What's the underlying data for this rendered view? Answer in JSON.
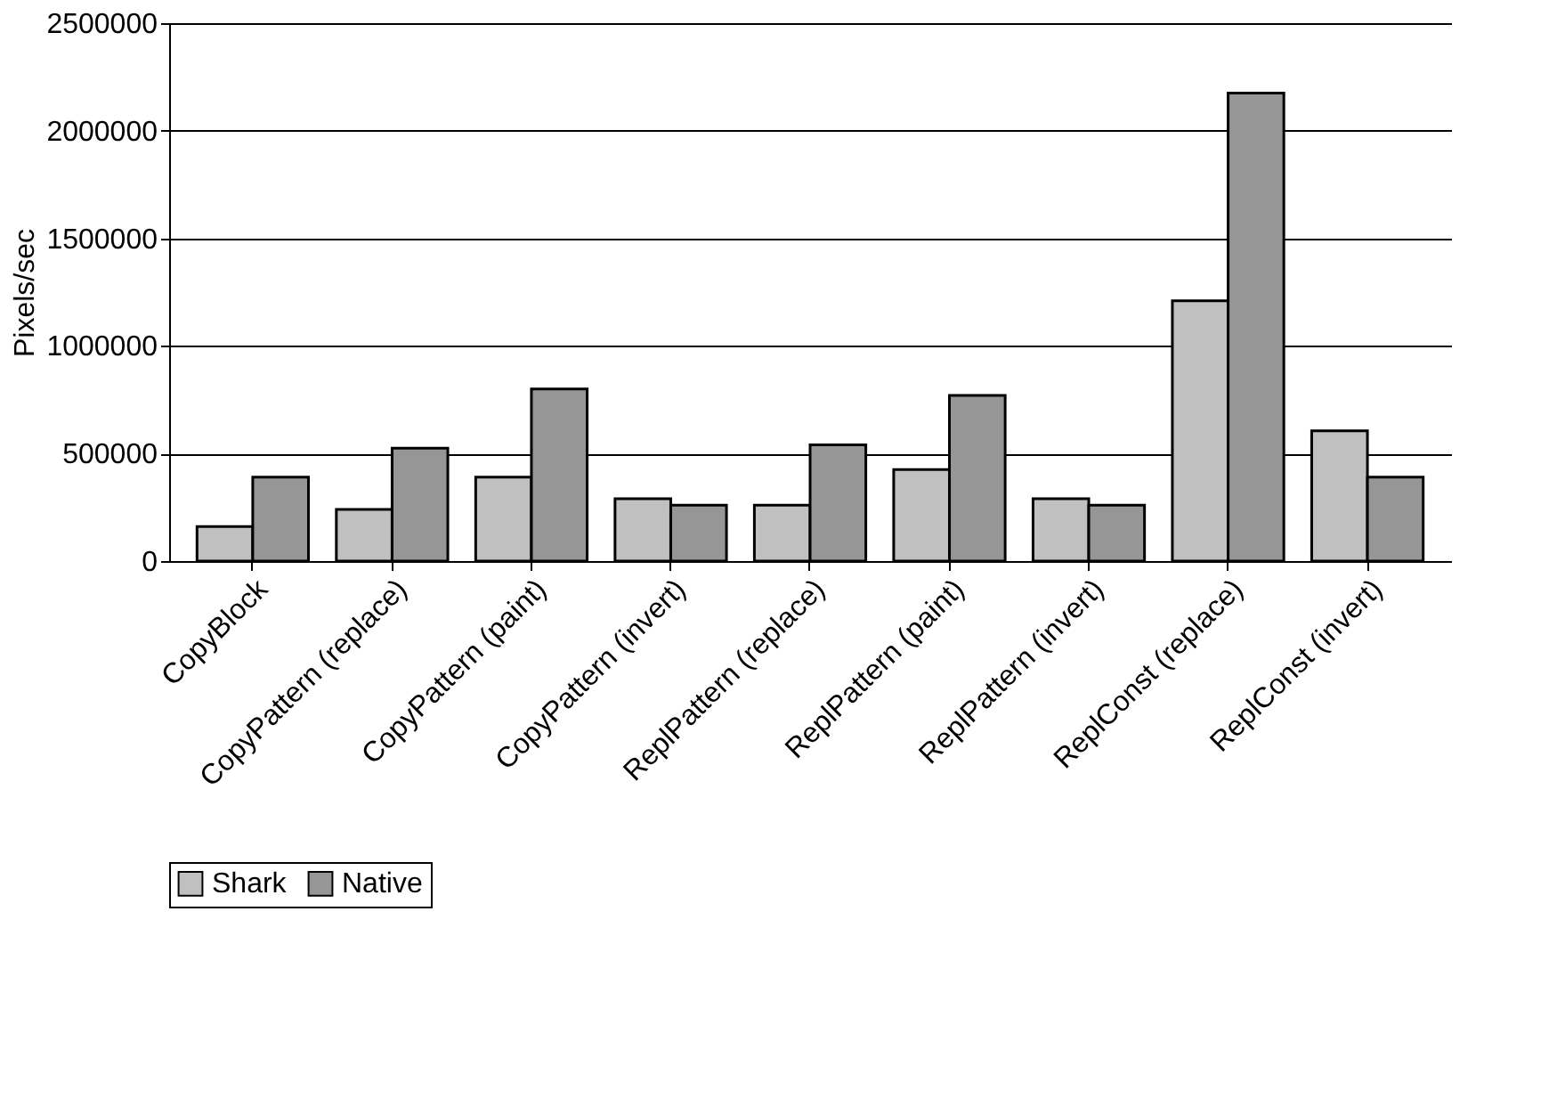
{
  "chart_data": {
    "type": "bar",
    "ylabel": "Pixels/sec",
    "categories": [
      "CopyBlock",
      "CopyPattern (replace)",
      "CopyPattern (paint)",
      "CopyPattern (invert)",
      "ReplPattern (replace)",
      "ReplPattern (paint)",
      "ReplPattern (invert)",
      "ReplConst (replace)",
      "ReplConst (invert)"
    ],
    "series": [
      {
        "name": "Shark",
        "color": "#c0c0c0",
        "values": [
          160000,
          240000,
          390000,
          290000,
          260000,
          425000,
          290000,
          1210000,
          605000
        ]
      },
      {
        "name": "Native",
        "color": "#969696",
        "values": [
          390000,
          525000,
          800000,
          260000,
          540000,
          770000,
          260000,
          2175000,
          390000
        ]
      }
    ],
    "ylim": [
      0,
      2500000
    ],
    "yticks": [
      0,
      500000,
      1000000,
      1500000,
      2000000,
      2500000
    ],
    "grid": "y",
    "legend": "bottom"
  }
}
